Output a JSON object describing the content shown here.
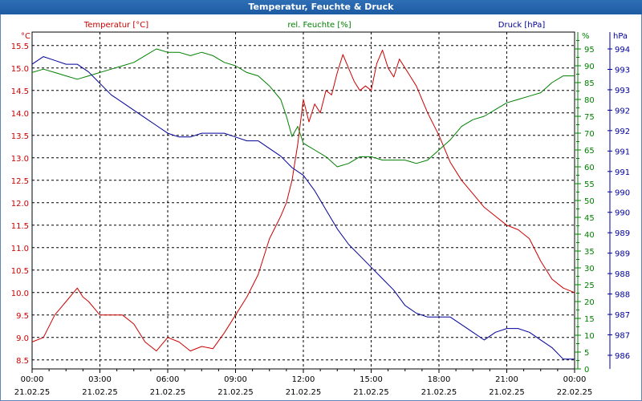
{
  "window": {
    "title": "Temperatur, Feuchte & Druck"
  },
  "chart_data": {
    "type": "line",
    "title": "Temperatur, Feuchte & Druck",
    "grid": true,
    "xlim": [
      "2025-02-21 00:00",
      "2025-02-22 00:00"
    ],
    "x_ticks": [
      {
        "time": "00:00",
        "date": "21.02.25"
      },
      {
        "time": "03:00",
        "date": "21.02.25"
      },
      {
        "time": "06:00",
        "date": "21.02.25"
      },
      {
        "time": "09:00",
        "date": "21.02.25"
      },
      {
        "time": "12:00",
        "date": "21.02.25"
      },
      {
        "time": "15:00",
        "date": "21.02.25"
      },
      {
        "time": "18:00",
        "date": "21.02.25"
      },
      {
        "time": "21:00",
        "date": "21.02.25"
      },
      {
        "time": "00:00",
        "date": "22.02.25"
      }
    ],
    "axes": {
      "temperature": {
        "label": "Temperatur [°C]",
        "unit": "°C",
        "color": "#cc0000",
        "side": "left",
        "ylim": [
          8.3,
          15.8
        ],
        "ticks": [
          "15.5",
          "15.0",
          "14.5",
          "14.0",
          "13.5",
          "13.0",
          "12.5",
          "12.0",
          "11.5",
          "11.0",
          "10.5",
          "10.0",
          "9.5",
          "9.0",
          "8.5"
        ]
      },
      "humidity": {
        "label": "rel. Feuchte [%]",
        "unit": "%",
        "color": "#008000",
        "side": "right",
        "ylim": [
          0,
          100
        ],
        "ticks": [
          "95",
          "90",
          "85",
          "80",
          "75",
          "70",
          "65",
          "60",
          "55",
          "50",
          "45",
          "40",
          "35",
          "30",
          "25",
          "20",
          "15",
          "10",
          "5",
          "0"
        ]
      },
      "pressure": {
        "label": "Druck [hPa]",
        "unit": "hPa",
        "color": "#000099",
        "side": "right",
        "ticks": [
          "994",
          "993",
          "993",
          "992",
          "992",
          "991",
          "991",
          "990",
          "990",
          "989",
          "989",
          "988",
          "988",
          "987",
          "987",
          "986"
        ]
      }
    },
    "series": [
      {
        "name": "Temperatur [°C]",
        "axis": "temperature",
        "color": "#cc0000",
        "x": [
          "00:00",
          "00:30",
          "01:00",
          "01:30",
          "02:00",
          "02:15",
          "02:30",
          "03:00",
          "03:30",
          "04:00",
          "04:30",
          "05:00",
          "05:30",
          "06:00",
          "06:30",
          "07:00",
          "07:30",
          "08:00",
          "08:30",
          "09:00",
          "09:30",
          "10:00",
          "10:30",
          "11:00",
          "11:15",
          "11:30",
          "11:45",
          "12:00",
          "12:15",
          "12:30",
          "12:45",
          "13:00",
          "13:15",
          "13:30",
          "13:45",
          "14:00",
          "14:15",
          "14:30",
          "14:45",
          "15:00",
          "15:15",
          "15:30",
          "15:45",
          "16:00",
          "16:15",
          "16:30",
          "16:45",
          "17:00",
          "17:30",
          "18:00",
          "18:30",
          "19:00",
          "19:30",
          "20:00",
          "20:30",
          "21:00",
          "21:30",
          "22:00",
          "22:30",
          "23:00",
          "23:30",
          "24:00"
        ],
        "y": [
          8.9,
          9.0,
          9.5,
          9.8,
          10.1,
          9.9,
          9.8,
          9.5,
          9.5,
          9.5,
          9.3,
          8.9,
          8.7,
          9.0,
          8.9,
          8.7,
          8.8,
          8.75,
          9.1,
          9.5,
          9.9,
          10.4,
          11.2,
          11.7,
          12.0,
          12.5,
          13.3,
          14.3,
          13.8,
          14.2,
          14.0,
          14.5,
          14.4,
          14.9,
          15.3,
          15.0,
          14.7,
          14.5,
          14.6,
          14.5,
          15.1,
          15.4,
          15.0,
          14.8,
          15.2,
          15.0,
          14.8,
          14.6,
          14.0,
          13.5,
          12.9,
          12.5,
          12.2,
          11.9,
          11.7,
          11.5,
          11.4,
          11.2,
          10.7,
          10.3,
          10.1,
          10.0
        ]
      },
      {
        "name": "rel. Feuchte [%]",
        "axis": "humidity",
        "color": "#008000",
        "x": [
          "00:00",
          "00:30",
          "01:00",
          "01:30",
          "02:00",
          "02:30",
          "03:00",
          "03:30",
          "04:00",
          "04:30",
          "05:00",
          "05:30",
          "06:00",
          "06:30",
          "07:00",
          "07:30",
          "08:00",
          "08:30",
          "09:00",
          "09:30",
          "10:00",
          "10:30",
          "11:00",
          "11:15",
          "11:30",
          "11:45",
          "12:00",
          "12:30",
          "13:00",
          "13:30",
          "14:00",
          "14:30",
          "15:00",
          "15:30",
          "16:00",
          "16:30",
          "17:00",
          "17:30",
          "18:00",
          "18:30",
          "19:00",
          "19:30",
          "20:00",
          "20:30",
          "21:00",
          "21:30",
          "22:00",
          "22:30",
          "23:00",
          "23:30",
          "24:00"
        ],
        "y": [
          88,
          89,
          88,
          87,
          86,
          87,
          88,
          89,
          90,
          91,
          93,
          95,
          94,
          94,
          93,
          94,
          93,
          91,
          90,
          88,
          87,
          84,
          80,
          75,
          69,
          72,
          67,
          65,
          63,
          60,
          61,
          63,
          63,
          62,
          62,
          62,
          61,
          62,
          65,
          68,
          72,
          74,
          75,
          77,
          79,
          80,
          81,
          82,
          85,
          87,
          87
        ]
      },
      {
        "name": "Druck [hPa]",
        "axis": "pressure",
        "color": "#000099",
        "x": [
          "00:00",
          "00:30",
          "01:00",
          "01:30",
          "02:00",
          "02:30",
          "03:00",
          "03:30",
          "04:00",
          "04:30",
          "05:00",
          "05:30",
          "06:00",
          "06:30",
          "07:00",
          "07:30",
          "08:00",
          "08:30",
          "09:00",
          "09:30",
          "10:00",
          "10:30",
          "11:00",
          "11:30",
          "12:00",
          "12:30",
          "13:00",
          "13:30",
          "14:00",
          "14:30",
          "15:00",
          "15:30",
          "16:00",
          "16:30",
          "17:00",
          "17:30",
          "18:00",
          "18:30",
          "19:00",
          "19:30",
          "20:00",
          "20:30",
          "21:00",
          "21:30",
          "22:00",
          "22:30",
          "23:00",
          "23:30",
          "24:00"
        ],
        "y": [
          993.6,
          993.8,
          993.7,
          993.6,
          993.6,
          993.4,
          993.1,
          992.8,
          992.6,
          992.4,
          992.2,
          992.0,
          991.8,
          991.7,
          991.7,
          991.8,
          991.8,
          991.8,
          991.7,
          991.6,
          991.6,
          991.4,
          991.2,
          990.9,
          990.7,
          990.3,
          989.8,
          989.3,
          988.9,
          988.6,
          988.3,
          988.0,
          987.7,
          987.3,
          987.1,
          987.0,
          987.0,
          987.0,
          986.8,
          986.6,
          986.4,
          986.6,
          986.7,
          986.7,
          986.6,
          986.4,
          986.2,
          985.9,
          985.9
        ]
      }
    ]
  }
}
